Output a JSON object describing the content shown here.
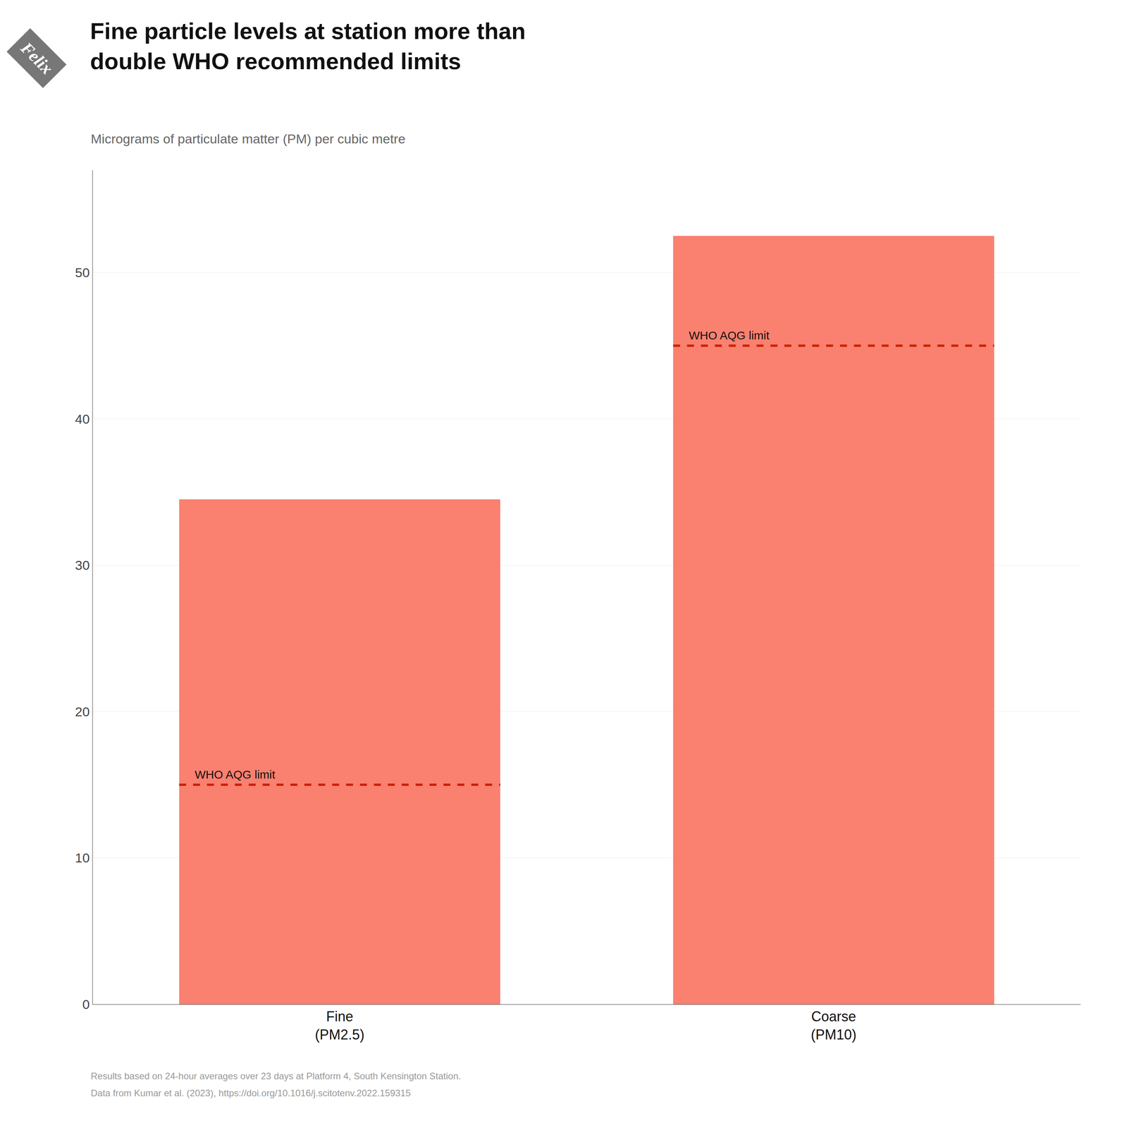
{
  "chart_data": {
    "type": "bar",
    "title": "Fine particle levels at station more than\ndouble WHO recommended limits",
    "subtitle": "Micrograms of particulate matter (PM) per cubic metre",
    "categories": [
      "Fine\n(PM2.5)",
      "Coarse\n(PM10)"
    ],
    "values": [
      34.5,
      52.5
    ],
    "color": "#FA8070",
    "ylim": [
      0,
      57
    ],
    "yticks": [
      0,
      10,
      20,
      30,
      40,
      50
    ],
    "grid": true,
    "limits": {
      "name": "WHO AQG limit",
      "values": [
        15.0,
        45.0
      ],
      "color": "#cc2200",
      "line_style": "dashed"
    },
    "footnotes": [
      "Results based on 24-hour averages over 23 days at Platform 4, South Kensington Station.",
      "Data from Kumar et al. (2023), https://doi.org/10.1016/j.scitotenv.2022.159315"
    ],
    "brand": "Felix"
  }
}
